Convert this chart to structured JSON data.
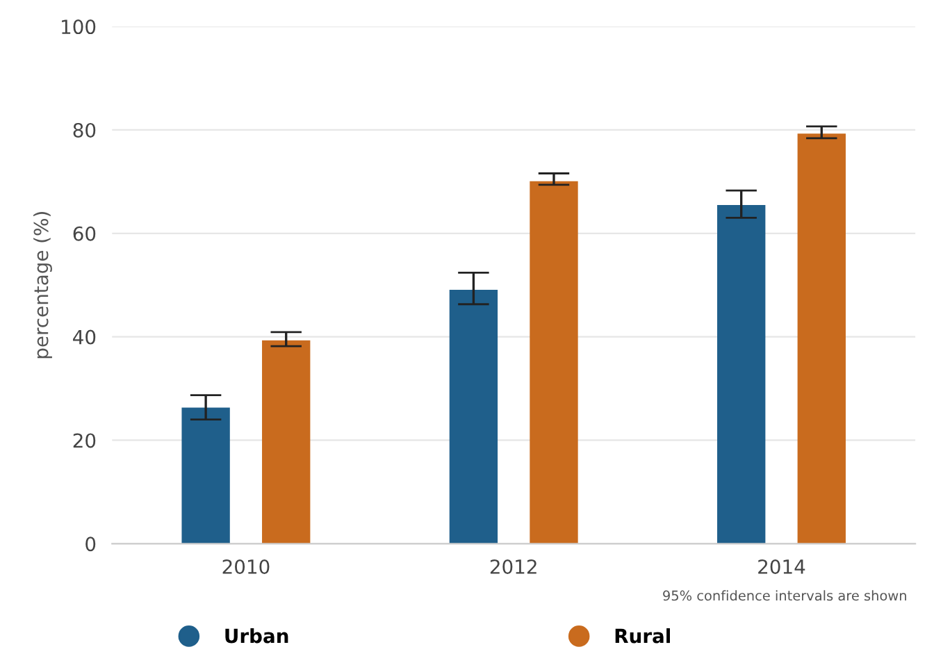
{
  "chart_data": {
    "type": "bar",
    "ylabel": "percentage (%)",
    "categories": [
      "2010",
      "2012",
      "2014"
    ],
    "series": [
      {
        "name": "Urban",
        "color": "#1f5f8b",
        "values": [
          26.3,
          49.1,
          65.5
        ],
        "errors": [
          [
            24.0,
            28.7
          ],
          [
            46.3,
            52.4
          ],
          [
            63.0,
            68.3
          ]
        ]
      },
      {
        "name": "Rural",
        "color": "#c96b1e",
        "values": [
          39.3,
          70.1,
          79.3
        ],
        "errors": [
          [
            38.2,
            40.9
          ],
          [
            69.4,
            71.6
          ],
          [
            78.4,
            80.7
          ]
        ]
      }
    ],
    "ylim": [
      0,
      100
    ],
    "yticks": [
      0,
      20,
      40,
      60,
      80,
      100
    ],
    "grid": "y",
    "legend": "bottom",
    "annotations": [
      "95% confidence intervals are shown"
    ]
  }
}
